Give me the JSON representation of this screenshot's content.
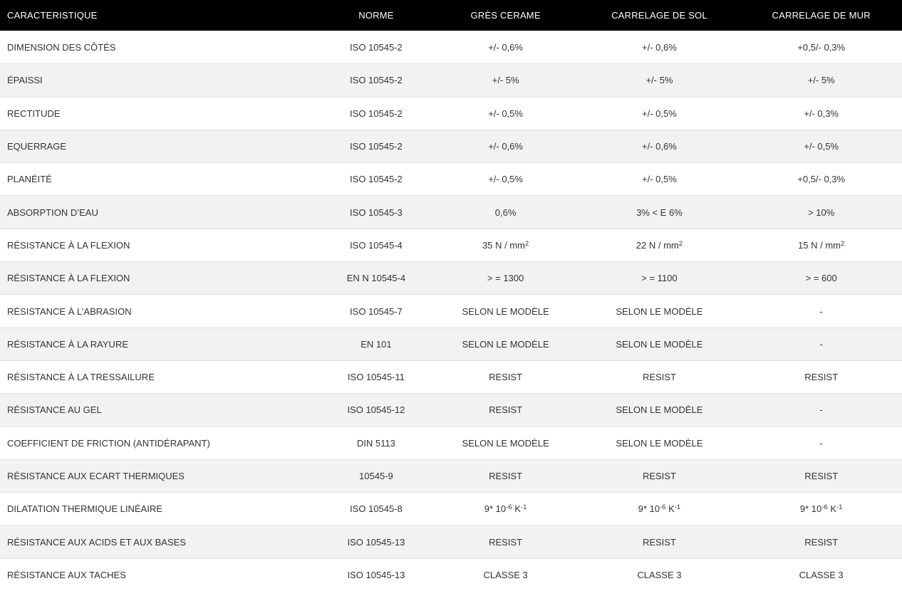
{
  "colors": {
    "header_bg": "#000000",
    "header_text": "#ffffff",
    "body_text": "#333333",
    "row_alt_bg": "#f2f2f2",
    "row_border": "#e0e0e0"
  },
  "table": {
    "columns": [
      "CARACTERISTIQUE",
      "NORME",
      "GRÈS CERAME",
      "CARRELAGE DE SOL",
      "CARRELAGE DE MUR"
    ],
    "rows": [
      {
        "label": "DIMENSION DES CÔTÉS",
        "norme": "ISO 10545-2",
        "gres_cerame": "+/- 0,6%",
        "carrelage_sol": "+/- 0,6%",
        "carrelage_mur": "+0,5/- 0,3%"
      },
      {
        "label": "ÉPAISSI",
        "norme": "ISO 10545-2",
        "gres_cerame": "+/- 5%",
        "carrelage_sol": "+/- 5%",
        "carrelage_mur": "+/- 5%"
      },
      {
        "label": "RECTITUDE",
        "norme": "ISO 10545-2",
        "gres_cerame": "+/- 0,5%",
        "carrelage_sol": "+/- 0,5%",
        "carrelage_mur": "+/- 0,3%"
      },
      {
        "label": "EQUERRAGE",
        "norme": "ISO 10545-2",
        "gres_cerame": "+/- 0,6%",
        "carrelage_sol": "+/- 0,6%",
        "carrelage_mur": "+/- 0,5%"
      },
      {
        "label": "PLANÉITÉ",
        "norme": "ISO 10545-2",
        "gres_cerame": "+/- 0,5%",
        "carrelage_sol": "+/- 0,5%",
        "carrelage_mur": "+0,5/- 0,3%"
      },
      {
        "label": "ABSORPTION D’EAU",
        "norme": "ISO 10545-3",
        "gres_cerame": "0,6%",
        "carrelage_sol": "3% < E 6%",
        "carrelage_mur": "> 10%"
      },
      {
        "label": "RÉSISTANCE À LA FLEXION",
        "norme": "ISO 10545-4",
        "gres_cerame": "35 N / mm^{2}",
        "carrelage_sol": "22 N / mm^{2}",
        "carrelage_mur": "15 N / mm^{2}"
      },
      {
        "label": "RÉSISTANCE À LA FLEXION",
        "norme": "EN N 10545-4",
        "gres_cerame": "> = 1300",
        "carrelage_sol": "> = 1100",
        "carrelage_mur": "> = 600"
      },
      {
        "label": "RÉSISTANCE À L’ABRASION",
        "norme": "ISO 10545-7",
        "gres_cerame": "SELON LE MODÈLE",
        "carrelage_sol": "SELON LE MODÈLE",
        "carrelage_mur": "-"
      },
      {
        "label": "RÉSISTANCE À LA RAYURE",
        "norme": "EN 101",
        "gres_cerame": "SELON LE MODÈLE",
        "carrelage_sol": "SELON LE MODÈLE",
        "carrelage_mur": "-"
      },
      {
        "label": "RÉSISTANCE À LA TRESSAILURE",
        "norme": "ISO 10545-11",
        "gres_cerame": "RESIST",
        "carrelage_sol": "RESIST",
        "carrelage_mur": "RESIST"
      },
      {
        "label": "RÉSISTANCE AU GEL",
        "norme": "ISO 10545-12",
        "gres_cerame": "RESIST",
        "carrelage_sol": "SELON LE MODÈLE",
        "carrelage_mur": "-"
      },
      {
        "label": "COEFFICIENT DE FRICTION (ANTIDÉRAPANT)",
        "norme": "DIN 5113",
        "gres_cerame": "SELON LE MODÈLE",
        "carrelage_sol": "SELON LE MODÈLE",
        "carrelage_mur": "-"
      },
      {
        "label": "RÉSISTANCE AUX ECART THERMIQUES",
        "norme": "10545-9",
        "gres_cerame": "RESIST",
        "carrelage_sol": "RESIST",
        "carrelage_mur": "RESIST"
      },
      {
        "label": "DILATATION THERMIQUE LINÉAIRE",
        "norme": "ISO 10545-8",
        "gres_cerame": "9* 10^{-6} K^{-1}",
        "carrelage_sol": "9* 10^{-6} K^{-1}",
        "carrelage_mur": "9* 10^{-6} K^{-1}"
      },
      {
        "label": "RÉSISTANCE AUX ACIDS ET AUX BASES",
        "norme": "ISO 10545-13",
        "gres_cerame": "RESIST",
        "carrelage_sol": "RESIST",
        "carrelage_mur": "RESIST"
      },
      {
        "label": "RÉSISTANCE AUX TACHES",
        "norme": "ISO 10545-13",
        "gres_cerame": "CLASSE 3",
        "carrelage_sol": "CLASSE 3",
        "carrelage_mur": "CLASSE 3"
      }
    ]
  }
}
